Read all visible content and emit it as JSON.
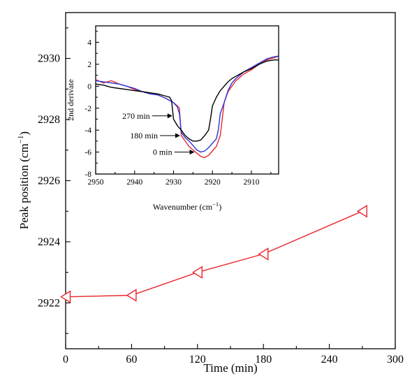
{
  "chart_data": [
    {
      "type": "line",
      "xlabel": "Time (min)",
      "ylabel": "Peak position (cm",
      "ylabel_sup": "−1",
      "ylabel_close": ")",
      "xlim": [
        0,
        300
      ],
      "ylim": [
        2920.5,
        2931.5
      ],
      "xticks": [
        0,
        60,
        120,
        180,
        240,
        300
      ],
      "yticks": [
        2922,
        2924,
        2926,
        2928,
        2930
      ],
      "series": [
        {
          "color": "#e8262b",
          "marker": "left-triangle",
          "x": [
            0,
            60,
            120,
            180,
            270
          ],
          "y": [
            2922.2,
            2922.25,
            2923.0,
            2923.6,
            2925.0
          ]
        }
      ]
    },
    {
      "type": "line",
      "xlabel": "Wavenumber (cm",
      "xlabel_sup": "−1",
      "xlabel_close": ")",
      "ylabel": "2nd derivate",
      "xlim": [
        2950,
        2903
      ],
      "ylim": [
        -8,
        5.5
      ],
      "xticks": [
        2950,
        2940,
        2930,
        2920,
        2910
      ],
      "yticks": [
        -8,
        -6,
        -4,
        -2,
        0,
        2,
        4
      ],
      "series": [
        {
          "color": "#e8262b",
          "x": [
            2950,
            2948,
            2946,
            2944,
            2942,
            2940,
            2938,
            2936,
            2934,
            2932,
            2930,
            2929,
            2928.5,
            2928,
            2927,
            2926,
            2925,
            2924,
            2923,
            2922,
            2921,
            2920,
            2919,
            2918,
            2917.5,
            2917,
            2916,
            2915,
            2914,
            2913,
            2912,
            2910,
            2908,
            2906,
            2904,
            2903
          ],
          "y": [
            0.6,
            0.3,
            0.5,
            0.2,
            0.0,
            -0.3,
            -0.5,
            -0.6,
            -0.8,
            -1.1,
            -1.5,
            -1.8,
            -2.0,
            -4.5,
            -5.0,
            -5.5,
            -5.8,
            -6.1,
            -6.4,
            -6.5,
            -6.3,
            -5.9,
            -5.5,
            -4.5,
            -3.0,
            -1.5,
            -0.5,
            0.0,
            0.5,
            0.8,
            1.1,
            1.5,
            2.0,
            2.4,
            2.6,
            2.8
          ]
        },
        {
          "color": "#2b35d6",
          "x": [
            2950,
            2948,
            2946,
            2944,
            2942,
            2940,
            2938,
            2936,
            2934,
            2932,
            2930,
            2929,
            2928.5,
            2928,
            2927,
            2926,
            2925,
            2924,
            2923,
            2922,
            2921,
            2920,
            2919,
            2918.5,
            2918,
            2917,
            2916,
            2915,
            2914,
            2913,
            2912,
            2910,
            2908,
            2906,
            2904,
            2903
          ],
          "y": [
            0.5,
            0.4,
            0.3,
            0.2,
            0.0,
            -0.2,
            -0.5,
            -0.7,
            -0.8,
            -1.1,
            -1.5,
            -1.9,
            -2.5,
            -4.2,
            -4.7,
            -5.0,
            -5.4,
            -5.8,
            -6.0,
            -5.9,
            -5.6,
            -5.2,
            -4.8,
            -4.0,
            -2.5,
            -1.5,
            -0.4,
            0.3,
            0.7,
            1.0,
            1.3,
            1.7,
            2.1,
            2.5,
            2.7,
            2.7
          ]
        },
        {
          "color": "#000000",
          "x": [
            2950,
            2948,
            2946,
            2944,
            2942,
            2940,
            2938,
            2936,
            2934,
            2932,
            2931,
            2930.5,
            2930,
            2929,
            2928,
            2927,
            2926,
            2925,
            2924,
            2923,
            2922,
            2921,
            2920.5,
            2920,
            2919,
            2918,
            2917,
            2916,
            2915,
            2914,
            2913,
            2912,
            2910,
            2908,
            2906,
            2904,
            2903
          ],
          "y": [
            0.2,
            0.1,
            -0.1,
            -0.2,
            -0.3,
            -0.4,
            -0.5,
            -0.6,
            -0.7,
            -0.9,
            -1.0,
            -1.3,
            -3.0,
            -3.6,
            -4.0,
            -4.5,
            -4.8,
            -5.0,
            -5.0,
            -4.9,
            -4.5,
            -4.0,
            -3.0,
            -1.8,
            -1.0,
            -0.4,
            0.0,
            0.4,
            0.7,
            0.9,
            1.1,
            1.3,
            1.6,
            2.0,
            2.3,
            2.4,
            2.4
          ]
        }
      ],
      "annotations": [
        {
          "text": "270 min",
          "target_x": 2930.3,
          "target_y": -2.7
        },
        {
          "text": "180 min",
          "target_x": 2928.3,
          "target_y": -4.5
        },
        {
          "text": "0 min",
          "target_x": 2924.6,
          "target_y": -6.0
        }
      ]
    }
  ]
}
